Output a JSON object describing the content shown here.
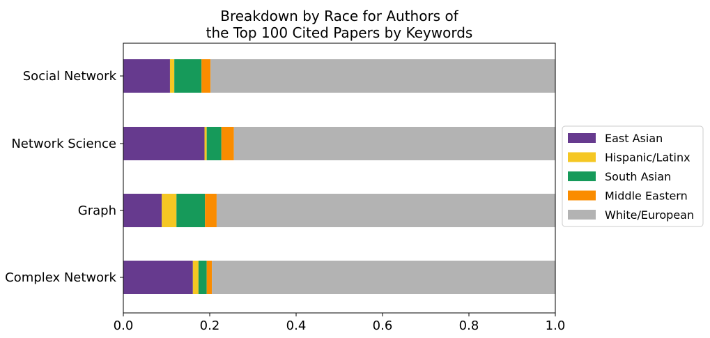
{
  "chart_data": {
    "type": "bar",
    "orientation": "horizontal",
    "stacked": true,
    "title": [
      "Breakdown by Race for Authors of",
      "the Top 100 Cited Papers by Keywords"
    ],
    "categories": [
      "Social Network",
      "Network Science",
      "Graph",
      "Complex Network"
    ],
    "xlim": [
      0.0,
      1.0
    ],
    "xticks": [
      "0.0",
      "0.2",
      "0.4",
      "0.6",
      "0.8",
      "1.0"
    ],
    "grid": false,
    "legend_position": "right",
    "series": [
      {
        "name": "East Asian",
        "color": "#663a8e",
        "values": [
          0.108,
          0.188,
          0.089,
          0.161
        ]
      },
      {
        "name": "Hispanic/Latinx",
        "color": "#f5c723",
        "values": [
          0.01,
          0.005,
          0.034,
          0.013
        ]
      },
      {
        "name": "South Asian",
        "color": "#169a5a",
        "values": [
          0.063,
          0.034,
          0.066,
          0.019
        ]
      },
      {
        "name": "Middle Eastern",
        "color": "#fa8c00",
        "values": [
          0.021,
          0.029,
          0.027,
          0.012
        ]
      },
      {
        "name": "White/European",
        "color": "#b3b3b3",
        "values": [
          0.798,
          0.744,
          0.784,
          0.795
        ]
      }
    ]
  }
}
